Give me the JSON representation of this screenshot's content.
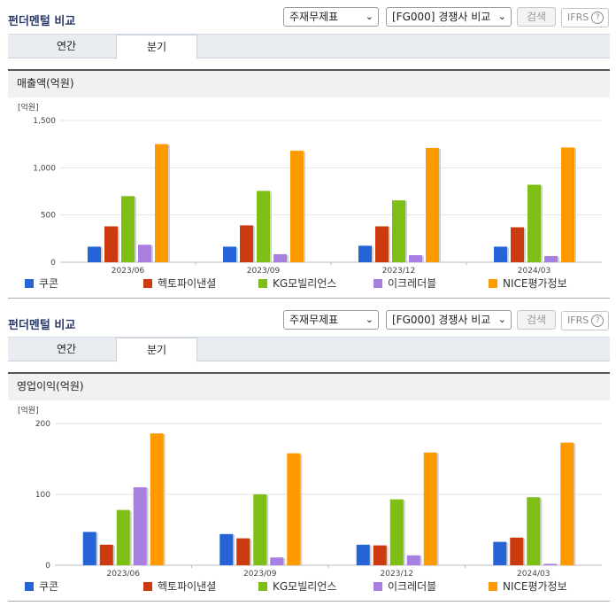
{
  "sections": [
    {
      "title": "펀더멘털 비교",
      "dropdown1": "주재무제표",
      "dropdown2": "[FG000] 경쟁사 비교",
      "search_label": "검색",
      "ifrs_label": "IFRS",
      "tabs": [
        "연간",
        "분기"
      ],
      "active_tab": "분기",
      "chart_title": "매출액(억원)",
      "unit": "[억원]"
    },
    {
      "title": "펀더멘털 비교",
      "dropdown1": "주재무제표",
      "dropdown2": "[FG000] 경쟁사 비교",
      "search_label": "검색",
      "ifrs_label": "IFRS",
      "tabs": [
        "연간",
        "분기"
      ],
      "active_tab": "분기",
      "chart_title": "영업이익(억원)",
      "unit": "[억원]"
    }
  ],
  "legend": [
    {
      "name": "쿠콘",
      "color": "#2563d6"
    },
    {
      "name": "헥토파이낸셜",
      "color": "#cc3a0f"
    },
    {
      "name": "KG모빌리언스",
      "color": "#7ebf16"
    },
    {
      "name": "이크레더블",
      "color": "#a77fe0"
    },
    {
      "name": "NICE평가정보",
      "color": "#ff9900"
    }
  ],
  "chart_data": [
    {
      "type": "bar",
      "title": "매출액(억원)",
      "ylabel": "[억원]",
      "categories": [
        "2023/06",
        "2023/09",
        "2023/12",
        "2024/03"
      ],
      "ylim": [
        0,
        1500
      ],
      "yticks": [
        "0",
        "500",
        "1,000",
        "1,500"
      ],
      "ytick_values": [
        0,
        500,
        1000,
        1500
      ],
      "series": [
        {
          "name": "쿠콘",
          "values": [
            165,
            165,
            175,
            165
          ]
        },
        {
          "name": "헥토파이낸셜",
          "values": [
            380,
            390,
            380,
            370
          ]
        },
        {
          "name": "KG모빌리언스",
          "values": [
            700,
            755,
            655,
            820
          ]
        },
        {
          "name": "이크레더블",
          "values": [
            185,
            85,
            75,
            65
          ]
        },
        {
          "name": "NICE평가정보",
          "values": [
            1250,
            1180,
            1210,
            1215
          ]
        }
      ]
    },
    {
      "type": "bar",
      "title": "영업이익(억원)",
      "ylabel": "[억원]",
      "categories": [
        "2023/06",
        "2023/09",
        "2023/12",
        "2024/03"
      ],
      "ylim": [
        0,
        200
      ],
      "yticks": [
        "0",
        "100",
        "200"
      ],
      "ytick_values": [
        0,
        100,
        200
      ],
      "series": [
        {
          "name": "쿠콘",
          "values": [
            47,
            44,
            29,
            33
          ]
        },
        {
          "name": "헥토파이낸셜",
          "values": [
            29,
            38,
            28,
            39
          ]
        },
        {
          "name": "KG모빌리언스",
          "values": [
            78,
            100,
            93,
            96
          ]
        },
        {
          "name": "이크레더블",
          "values": [
            110,
            11,
            14,
            2
          ]
        },
        {
          "name": "NICE평가정보",
          "values": [
            186,
            158,
            159,
            173
          ]
        }
      ]
    }
  ]
}
